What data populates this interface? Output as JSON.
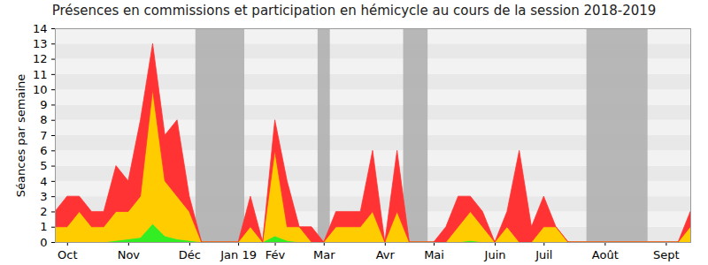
{
  "chart_data": {
    "type": "area",
    "title": "Présences en commissions et participation en hémicycle au cours de la session 2018-2019",
    "y_label": "Séances par semaine",
    "stacked": true,
    "grid": true,
    "categories": [
      null,
      "Oct",
      null,
      null,
      null,
      null,
      "Nov",
      null,
      null,
      null,
      null,
      "Déc",
      null,
      null,
      null,
      "Jan 19",
      null,
      null,
      "Fév",
      null,
      null,
      null,
      "Mar",
      null,
      null,
      null,
      null,
      "Avr",
      null,
      null,
      null,
      "Mai",
      null,
      null,
      null,
      null,
      "Juin",
      null,
      null,
      null,
      "Juil",
      null,
      null,
      null,
      null,
      "Août",
      null,
      null,
      null,
      null,
      "Sept",
      null,
      null
    ],
    "series": [
      {
        "color": "#33ee22",
        "values": [
          0,
          0,
          0,
          0,
          0,
          0.1,
          0.2,
          0.3,
          1.2,
          0.4,
          0.2,
          0.1,
          0,
          0,
          0,
          0,
          0,
          0,
          0.4,
          0.1,
          0,
          0,
          0,
          0,
          0,
          0,
          0,
          0,
          0,
          0,
          0,
          0,
          0,
          0,
          0.1,
          0,
          0,
          0,
          0,
          0,
          0,
          0,
          0,
          0,
          0,
          0,
          0,
          0,
          0,
          0,
          0,
          0,
          0
        ]
      },
      {
        "color": "#ffcc00",
        "values": [
          1,
          1,
          2,
          1,
          1,
          1.9,
          1.8,
          2.7,
          8.8,
          3.6,
          2.8,
          1.9,
          0,
          0,
          0,
          0,
          1,
          0,
          5.6,
          0.9,
          1,
          0,
          0,
          1,
          1,
          1,
          2,
          0,
          2,
          0,
          0,
          0,
          0,
          1,
          1.9,
          1,
          0,
          1,
          0,
          0,
          1,
          1,
          0,
          0,
          0,
          0,
          0,
          0,
          0,
          0,
          0,
          0,
          1
        ]
      },
      {
        "color": "#ff3333",
        "values": [
          1,
          2,
          1,
          1,
          1,
          3,
          2,
          5,
          3,
          3,
          5,
          1,
          0,
          0,
          0,
          0,
          2,
          0,
          2,
          3,
          0,
          1,
          0,
          1,
          1,
          1,
          4,
          0,
          4,
          0,
          0,
          0,
          1,
          2,
          1,
          1,
          0,
          1,
          6,
          1,
          2,
          0,
          0,
          0,
          0,
          0,
          0,
          0,
          0,
          0,
          0,
          0,
          1
        ]
      }
    ],
    "shaded_weeks": [
      [
        12,
        15
      ],
      [
        22,
        22
      ],
      [
        29,
        30
      ],
      [
        44,
        48
      ]
    ],
    "ylim": [
      0,
      14
    ],
    "yticks": [
      0,
      1,
      2,
      3,
      4,
      5,
      6,
      7,
      8,
      9,
      10,
      11,
      12,
      13,
      14
    ]
  }
}
